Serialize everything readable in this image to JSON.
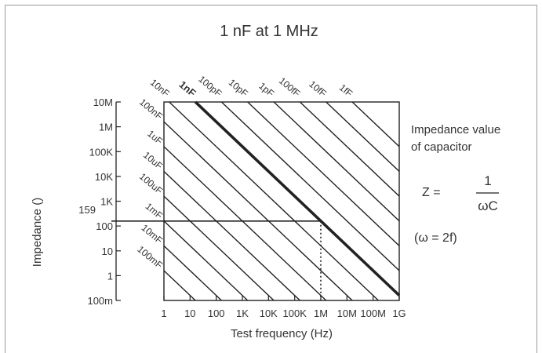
{
  "chart_data": {
    "type": "line",
    "title": "1 nF at 1 MHz",
    "xlabel": "Test frequency (Hz)",
    "ylabel": "Impedance ()",
    "x_scale": "log",
    "y_scale": "log",
    "xlim": [
      1,
      1000000000
    ],
    "ylim": [
      0.1,
      10000000
    ],
    "x_ticks": [
      {
        "value": 1,
        "label": "1"
      },
      {
        "value": 10,
        "label": "10"
      },
      {
        "value": 100,
        "label": "100"
      },
      {
        "value": 1000,
        "label": "1K"
      },
      {
        "value": 10000,
        "label": "10K"
      },
      {
        "value": 100000,
        "label": "100K"
      },
      {
        "value": 1000000,
        "label": "1M"
      },
      {
        "value": 10000000,
        "label": "10M"
      },
      {
        "value": 100000000,
        "label": "100M"
      },
      {
        "value": 1000000000,
        "label": "1G"
      }
    ],
    "y_ticks": [
      {
        "value": 0.1,
        "label": "100m"
      },
      {
        "value": 1,
        "label": "1"
      },
      {
        "value": 10,
        "label": "10"
      },
      {
        "value": 100,
        "label": "100"
      },
      {
        "value": 1000,
        "label": "1K"
      },
      {
        "value": 10000,
        "label": "10K"
      },
      {
        "value": 100000,
        "label": "100K"
      },
      {
        "value": 1000000,
        "label": "1M"
      },
      {
        "value": 10000000,
        "label": "10M"
      }
    ],
    "capacitance_lines": [
      {
        "label": "10nF",
        "capacitance": 1e-08,
        "highlight": false
      },
      {
        "label": "1nF",
        "capacitance": 1e-09,
        "highlight": true
      },
      {
        "label": "100pF",
        "capacitance": 1e-10,
        "highlight": false
      },
      {
        "label": "10pF",
        "capacitance": 1e-11,
        "highlight": false
      },
      {
        "label": "1pF",
        "capacitance": 1e-12,
        "highlight": false
      },
      {
        "label": "100fF",
        "capacitance": 1e-13,
        "highlight": false
      },
      {
        "label": "10fF",
        "capacitance": 1e-14,
        "highlight": false
      },
      {
        "label": "1fF",
        "capacitance": 1e-15,
        "highlight": false
      },
      {
        "label": "100nF",
        "capacitance": 1e-07,
        "highlight": false
      },
      {
        "label": "1uF",
        "capacitance": 1e-06,
        "highlight": false
      },
      {
        "label": "10uF",
        "capacitance": 1e-05,
        "highlight": false
      },
      {
        "label": "100uF",
        "capacitance": 0.0001,
        "highlight": false
      },
      {
        "label": "1mF",
        "capacitance": 0.001,
        "highlight": false
      },
      {
        "label": "10mF",
        "capacitance": 0.01,
        "highlight": false
      },
      {
        "label": "100mF",
        "capacitance": 0.1,
        "highlight": false
      }
    ],
    "annotation": {
      "frequency": 1000000,
      "impedance": 159,
      "impedance_label": "159"
    },
    "colors": {
      "lines": "#222222",
      "text": "#333333",
      "frame": "#9a9a9a"
    }
  },
  "formula": {
    "heading_line1": "Impedance value",
    "heading_line2": "of capacitor",
    "lhs": "Z =",
    "numerator": "1",
    "denominator": "ωC",
    "omega_def": "(ω = 2f)"
  }
}
